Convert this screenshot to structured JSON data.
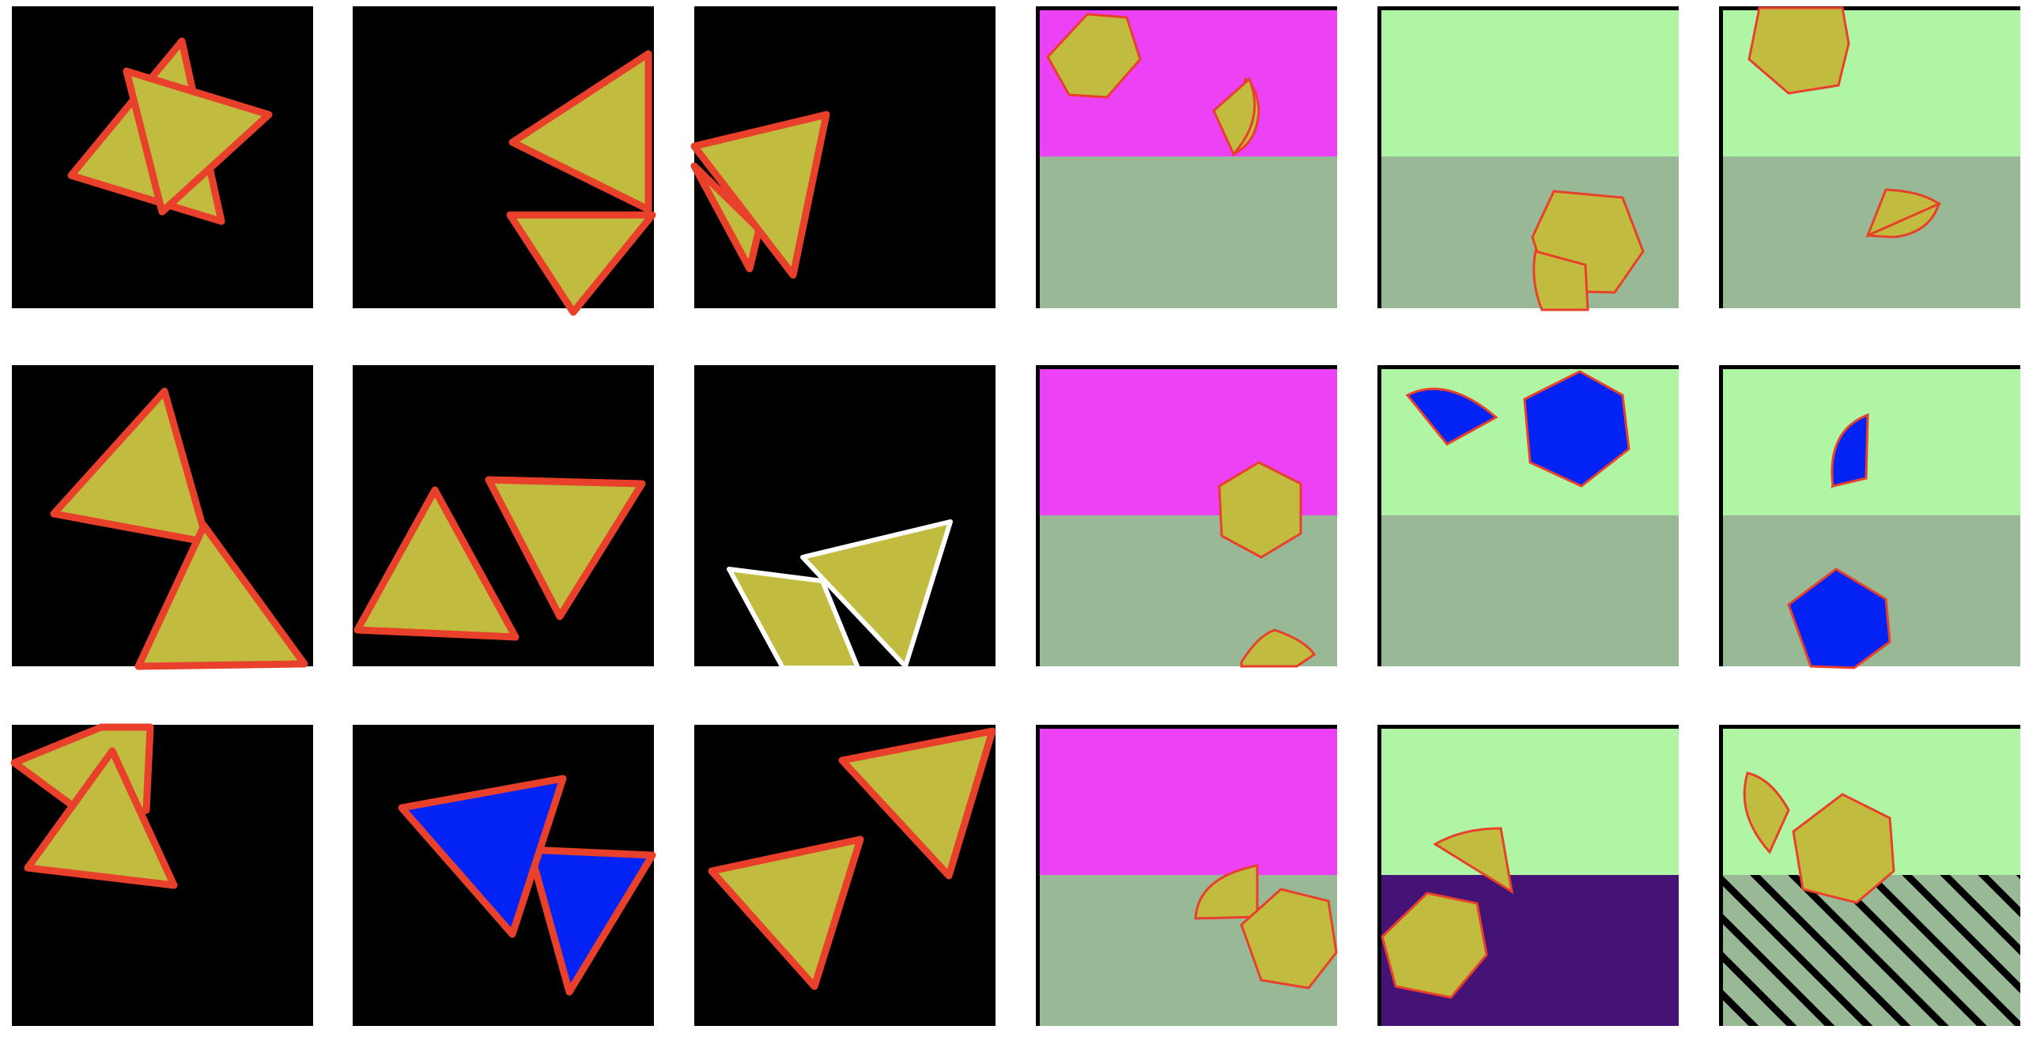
{
  "colors": {
    "black": "#000000",
    "olive_fill": "#c1bc40",
    "red_stroke": "#e8402a",
    "white_stroke": "#ffffff",
    "blue_fill": "#0323f5",
    "magenta_bg": "#ec41f4",
    "sage_bg": "#99b996",
    "lightgreen_bg": "#b0f5a4",
    "purple_bg": "#441375",
    "stripe": "#000000"
  },
  "panels": [
    {
      "id": "r1c1",
      "background": "black",
      "shapes": [
        "triangle",
        "triangle"
      ],
      "fill": "olive_fill",
      "stroke": "red_stroke"
    },
    {
      "id": "r1c2",
      "background": "black",
      "shapes": [
        "triangle",
        "triangle"
      ],
      "fill": "olive_fill",
      "stroke": "red_stroke"
    },
    {
      "id": "r1c3",
      "background": "black",
      "shapes": [
        "triangle",
        "triangle"
      ],
      "fill": "olive_fill",
      "stroke": "red_stroke"
    },
    {
      "id": "r1c4",
      "background": "magenta_over_sage",
      "shapes": [
        "hexagon",
        "sector"
      ],
      "fill": "olive_fill",
      "stroke": "red_stroke"
    },
    {
      "id": "r1c5",
      "background": "lightgreen_over_sage",
      "shapes": [
        "hexagon",
        "sector"
      ],
      "fill": "olive_fill",
      "stroke": "red_stroke"
    },
    {
      "id": "r1c6",
      "background": "lightgreen_over_sage",
      "shapes": [
        "hexagon",
        "sector"
      ],
      "fill": "olive_fill",
      "stroke": "red_stroke"
    },
    {
      "id": "r2c1",
      "background": "black",
      "shapes": [
        "triangle",
        "triangle"
      ],
      "fill": "olive_fill",
      "stroke": "red_stroke"
    },
    {
      "id": "r2c2",
      "background": "black",
      "shapes": [
        "triangle",
        "triangle"
      ],
      "fill": "olive_fill",
      "stroke": "red_stroke"
    },
    {
      "id": "r2c3",
      "background": "black",
      "shapes": [
        "triangle",
        "triangle"
      ],
      "fill": "olive_fill",
      "stroke": "white_stroke"
    },
    {
      "id": "r2c4",
      "background": "magenta_over_sage",
      "shapes": [
        "hexagon",
        "sector"
      ],
      "fill": "olive_fill",
      "stroke": "red_stroke"
    },
    {
      "id": "r2c5",
      "background": "lightgreen_over_sage",
      "shapes": [
        "hexagon",
        "sector"
      ],
      "fill": "blue_fill",
      "stroke": "red_stroke"
    },
    {
      "id": "r2c6",
      "background": "lightgreen_over_sage",
      "shapes": [
        "hexagon",
        "sector"
      ],
      "fill": "blue_fill",
      "stroke": "red_stroke"
    },
    {
      "id": "r3c1",
      "background": "black",
      "shapes": [
        "triangle",
        "triangle"
      ],
      "fill": "olive_fill",
      "stroke": "red_stroke"
    },
    {
      "id": "r3c2",
      "background": "black",
      "shapes": [
        "triangle",
        "triangle"
      ],
      "fill": "blue_fill",
      "stroke": "red_stroke"
    },
    {
      "id": "r3c3",
      "background": "black",
      "shapes": [
        "triangle",
        "triangle"
      ],
      "fill": "olive_fill",
      "stroke": "red_stroke"
    },
    {
      "id": "r3c4",
      "background": "magenta_over_sage",
      "shapes": [
        "hexagon",
        "sector"
      ],
      "fill": "olive_fill",
      "stroke": "red_stroke"
    },
    {
      "id": "r3c5",
      "background": "lightgreen_over_purple",
      "shapes": [
        "hexagon",
        "sector"
      ],
      "fill": "olive_fill",
      "stroke": "red_stroke"
    },
    {
      "id": "r3c6",
      "background": "lightgreen_over_striped_sage",
      "shapes": [
        "hexagon",
        "sector"
      ],
      "fill": "olive_fill",
      "stroke": "red_stroke"
    }
  ]
}
